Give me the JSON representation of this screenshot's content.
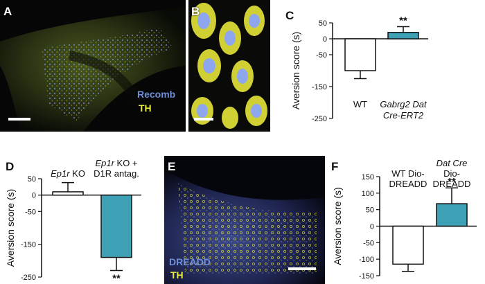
{
  "panels": {
    "A": {
      "letter": "A",
      "label_recomb": "Recomb",
      "label_th": "TH",
      "colors": {
        "recomb": "#6f8fd9",
        "th": "#e8ea3c"
      }
    },
    "B": {
      "letter": "B"
    },
    "C": {
      "letter": "C"
    },
    "D": {
      "letter": "D"
    },
    "E": {
      "letter": "E",
      "label_dreadd": "DREADD",
      "label_th": "TH",
      "colors": {
        "dreadd": "#6f8fd9",
        "th": "#e8ea3c"
      }
    },
    "F": {
      "letter": "F"
    }
  },
  "colors": {
    "teal_bar": "#3ea0b4",
    "white_bar": "#ffffff",
    "axis": "#111111"
  },
  "chart_data": [
    {
      "id": "C",
      "type": "bar",
      "ylabel": "Aversion score (s)",
      "ylim": [
        -250,
        50
      ],
      "yticks": [
        50,
        0,
        -50,
        -150,
        -250
      ],
      "categories": [
        "WT",
        "Gabrg2 Dat Cre-ERT2"
      ],
      "category_labels": [
        [
          "WT"
        ],
        [
          "Gabrg2 Dat",
          "Cre-ERT2"
        ]
      ],
      "category_italic": [
        false,
        true
      ],
      "values": [
        -100,
        20
      ],
      "errors": [
        25,
        18
      ],
      "bar_colors": [
        "#ffffff",
        "#3ea0b4"
      ],
      "significance": [
        "",
        "**"
      ]
    },
    {
      "id": "D",
      "type": "bar",
      "ylabel": "Aversion score (s)",
      "ylim": [
        -250,
        50
      ],
      "yticks": [
        50,
        0,
        -50,
        -150,
        -250
      ],
      "categories": [
        "Ep1r KO",
        "Ep1r KO + D1R antag."
      ],
      "category_labels": [
        [
          "Ep1r KO"
        ],
        [
          "Ep1r KO +",
          "D1R antag."
        ]
      ],
      "category_italic_parts": [
        [
          "Ep1r"
        ],
        [
          "Ep1r"
        ]
      ],
      "values": [
        10,
        -190
      ],
      "errors": [
        28,
        40
      ],
      "bar_colors": [
        "#ffffff",
        "#3ea0b4"
      ],
      "significance": [
        "",
        "**"
      ]
    },
    {
      "id": "F",
      "type": "bar",
      "ylabel": "Aversion score (s)",
      "ylim": [
        -150,
        150
      ],
      "yticks": [
        150,
        100,
        50,
        0,
        -50,
        -100,
        -150
      ],
      "categories": [
        "WT Dio-DREADD",
        "Dat Cre Dio-DREADD"
      ],
      "category_labels": [
        [
          "WT Dio-",
          "DREADD"
        ],
        [
          "Dat Cre",
          "Dio-",
          "DREADD"
        ]
      ],
      "category_italic_first": [
        false,
        true
      ],
      "values": [
        -115,
        68
      ],
      "errors": [
        22,
        48
      ],
      "bar_colors": [
        "#ffffff",
        "#3ea0b4"
      ],
      "significance": [
        "",
        "**"
      ]
    }
  ]
}
